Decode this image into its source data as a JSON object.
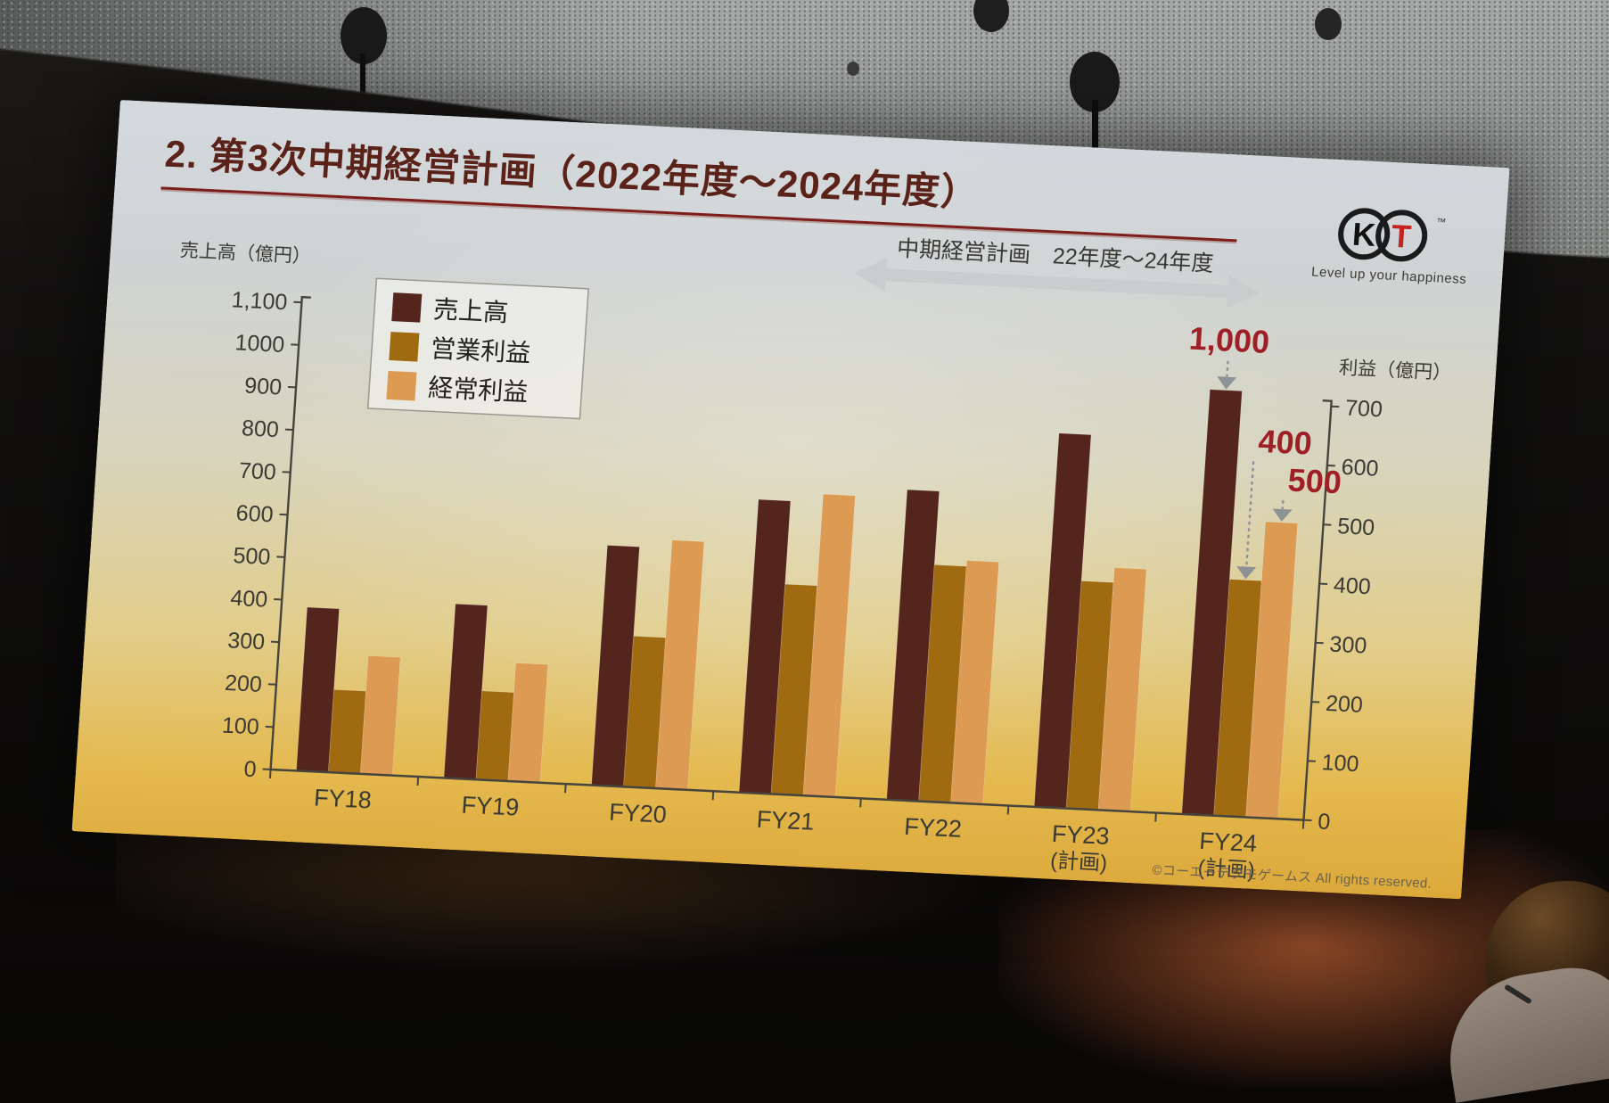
{
  "slide": {
    "title": "2. 第3次中期経営計画（2022年度～2024年度）",
    "midterm_banner": "中期経営計画　22年度～24年度",
    "copyright": "©コーエーテクモゲームス All rights reserved.",
    "logo": {
      "letter_k": "K",
      "letter_t": "T",
      "tm": "™",
      "tagline": "Level up your happiness"
    }
  },
  "chart_data": {
    "type": "bar",
    "categories": [
      "FY18",
      "FY19",
      "FY20",
      "FY21",
      "FY22",
      "FY23",
      "FY24"
    ],
    "category_notes": [
      "",
      "",
      "",
      "",
      "",
      "(計画)",
      "(計画)"
    ],
    "series": [
      {
        "name": "売上高",
        "axis": "left",
        "color": "#54251c",
        "values": [
          385,
          410,
          565,
          690,
          730,
          880,
          1000
        ]
      },
      {
        "name": "営業利益",
        "axis": "right",
        "color": "#a06a10",
        "values": [
          140,
          150,
          255,
          355,
          400,
          385,
          400
        ]
      },
      {
        "name": "経常利益",
        "axis": "right",
        "color": "#dc9a52",
        "values": [
          200,
          200,
          420,
          510,
          410,
          410,
          500
        ]
      }
    ],
    "left_axis": {
      "title": "売上高（億円）",
      "min": 0,
      "max": 1100,
      "step": 100,
      "tick_labels": [
        "0",
        "100",
        "200",
        "300",
        "400",
        "500",
        "600",
        "700",
        "800",
        "900",
        "1000",
        "1,100"
      ]
    },
    "right_axis": {
      "title": "利益（億円）",
      "min": 0,
      "max": 700,
      "step": 100,
      "tick_labels": [
        "0",
        "100",
        "200",
        "300",
        "400",
        "500",
        "600",
        "700"
      ]
    },
    "annotations": [
      {
        "text": "1,000",
        "series": 0,
        "category": 6
      },
      {
        "text": "400",
        "series": 1,
        "category": 6
      },
      {
        "text": "500",
        "series": 2,
        "category": 6
      }
    ],
    "annotation_color": "#9e1f26",
    "legend_position": "top-left",
    "grid": false
  }
}
